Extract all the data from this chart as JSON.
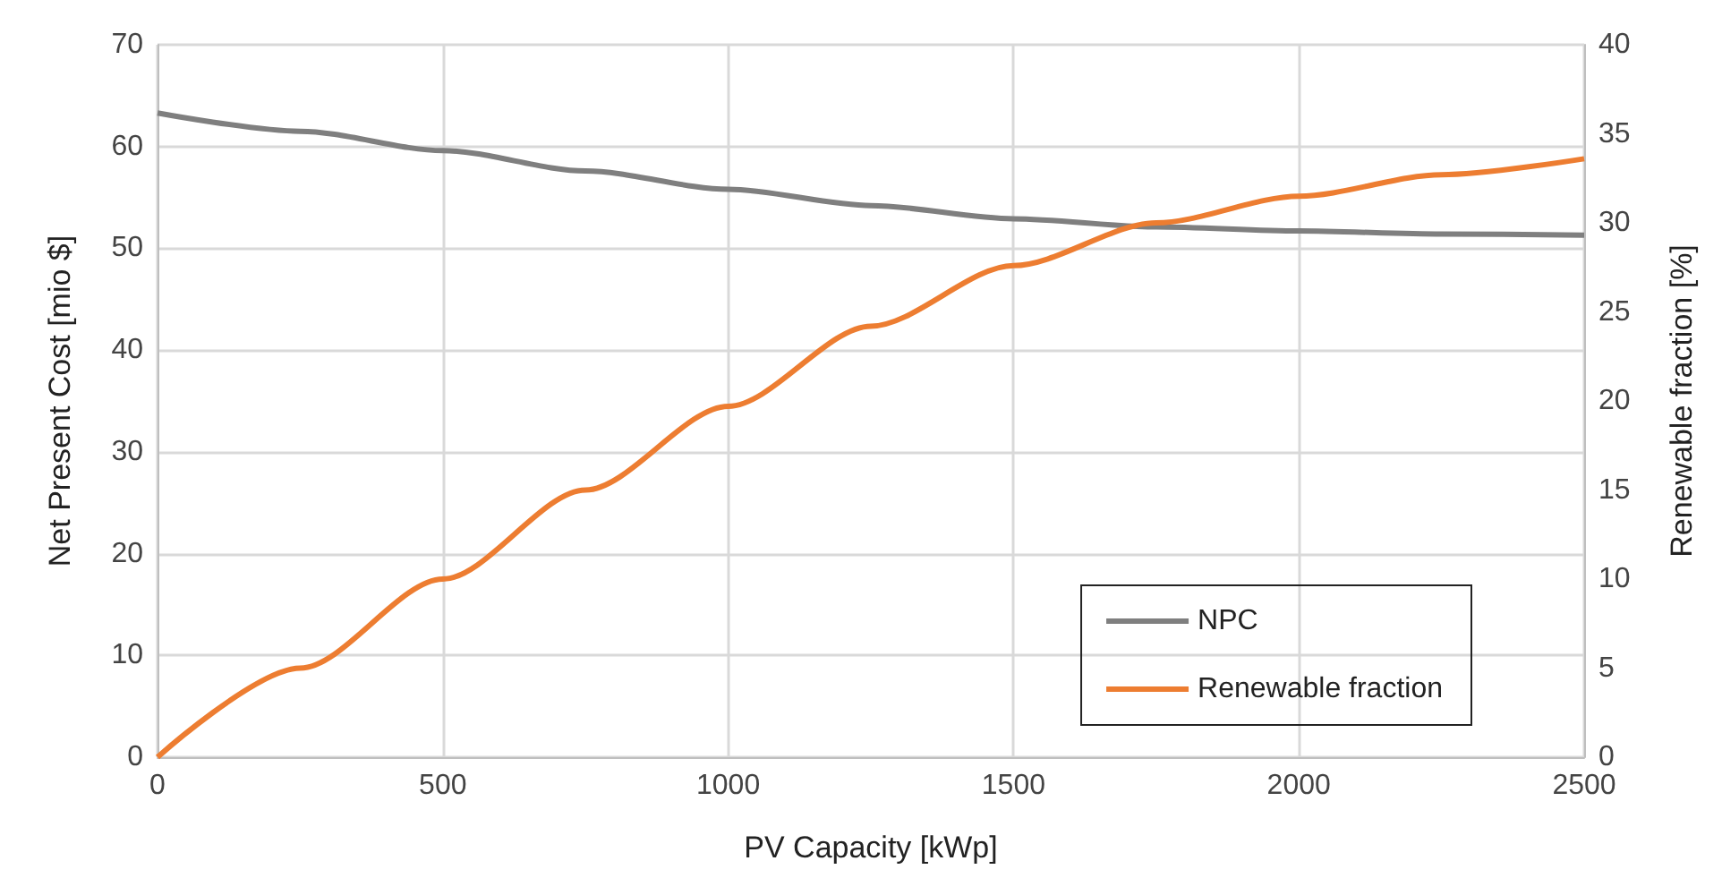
{
  "chart_data": {
    "type": "line",
    "xlabel": "PV Capacity [kWp]",
    "ylabel": "Net Present Cost [mio $]",
    "y2label": "Renewable fraction [%]",
    "x": [
      0,
      250,
      500,
      750,
      1000,
      1250,
      1500,
      1750,
      2000,
      2250,
      2500
    ],
    "series": [
      {
        "name": "NPC",
        "color": "#7f7f7f",
        "values": [
          63.3,
          61.5,
          59.6,
          57.6,
          55.8,
          54.2,
          52.9,
          52.1,
          51.7,
          51.4,
          51.3
        ]
      },
      {
        "name": "Renewable fraction",
        "color": "#ed7d31",
        "axis": "y2",
        "values": [
          0,
          5,
          10,
          15,
          19.7,
          24.2,
          27.6,
          30.0,
          31.5,
          32.7,
          33.6
        ]
      }
    ],
    "xlim": [
      0,
      2500
    ],
    "xticks": [
      0,
      500,
      1000,
      1500,
      2000,
      2500
    ],
    "ylim": [
      0,
      70
    ],
    "yticks": [
      0,
      10,
      20,
      30,
      40,
      50,
      60,
      70
    ],
    "y2lim": [
      0,
      40
    ],
    "y2ticks": [
      0,
      5,
      10,
      15,
      20,
      25,
      30,
      35,
      40
    ],
    "grid": true,
    "legend": "bottom right",
    "marker": "none",
    "line_style": "solid"
  }
}
